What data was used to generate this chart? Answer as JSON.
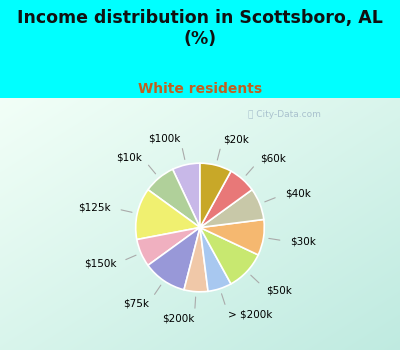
{
  "title": "Income distribution in Scottsboro, AL\n(%)",
  "subtitle": "White residents",
  "background_color": "#00FFFF",
  "labels": [
    "$100k",
    "$10k",
    "$125k",
    "$150k",
    "$75k",
    "$200k",
    "> $200k",
    "$50k",
    "$30k",
    "$40k",
    "$60k",
    "$20k"
  ],
  "values": [
    7,
    8,
    13,
    7,
    11,
    6,
    6,
    10,
    9,
    8,
    7,
    8
  ],
  "colors": [
    "#c8b8e8",
    "#b0d09a",
    "#f0f070",
    "#f0b0c0",
    "#9898d8",
    "#f0c8a8",
    "#a8c8f0",
    "#c8e870",
    "#f5b870",
    "#c8c8a8",
    "#e87878",
    "#c8a828"
  ],
  "startangle": 90,
  "label_fontsize": 7.5,
  "title_fontsize": 12.5,
  "subtitle_fontsize": 10,
  "subtitle_color": "#c06020",
  "wedge_linewidth": 1.2,
  "wedge_edgecolor": "white",
  "chart_bg_colors": [
    "#e8f5f0",
    "#c0e8e0"
  ],
  "watermark_color": "#a0b8c8",
  "watermark_text": "City-Data.com"
}
